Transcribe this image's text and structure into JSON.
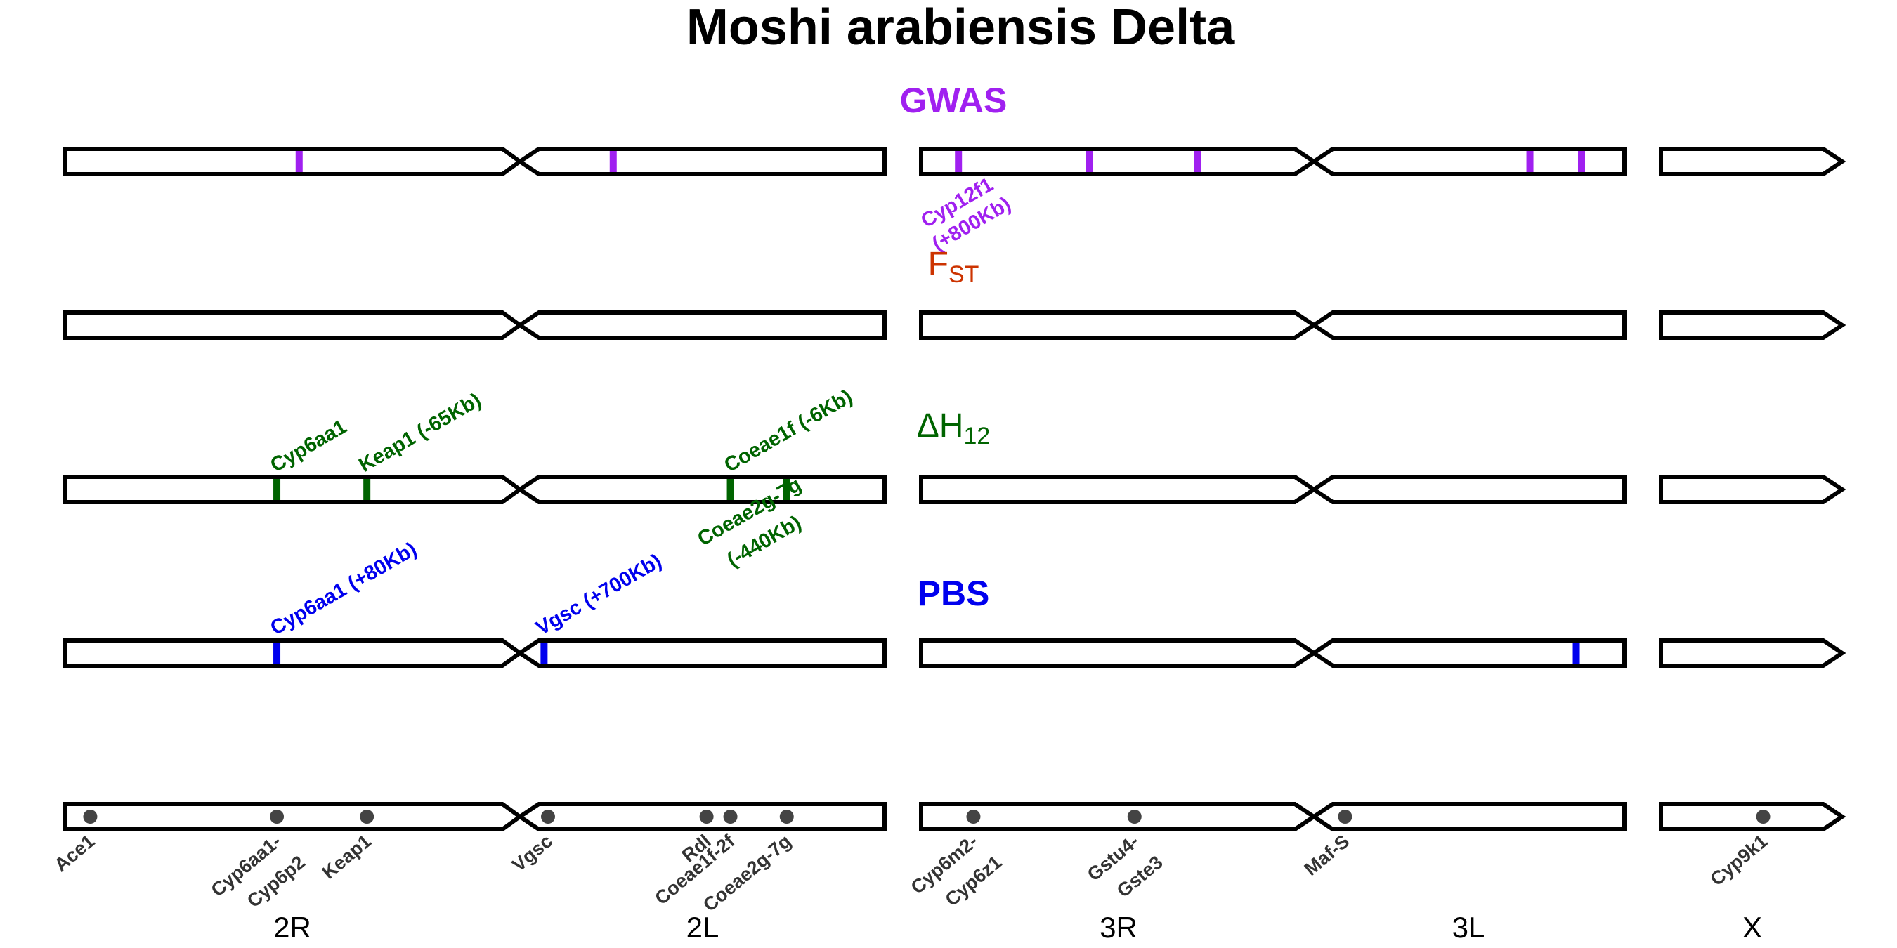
{
  "title": "Moshi arabiensis Delta",
  "colors": {
    "outline": "#000000",
    "gwas": "#a020f0",
    "fst": "#cc3300",
    "h12": "#006400",
    "pbs": "#0000ee",
    "locus": "#444444"
  },
  "tracks": [
    {
      "id": "gwas",
      "label": "GWAS",
      "label_sub": "",
      "label_prefix": "",
      "bold": true,
      "markers": [
        {
          "arm": "2R",
          "pos": 0.535
        },
        {
          "arm": "2L",
          "pos": 0.215
        },
        {
          "arm": "3R",
          "pos": 0.1
        },
        {
          "arm": "3R",
          "pos": 0.45
        },
        {
          "arm": "3R",
          "pos": 0.74
        },
        {
          "arm": "3L",
          "pos": 0.676
        },
        {
          "arm": "3L",
          "pos": 0.853
        }
      ],
      "annotations": [
        {
          "text": "Cyp12f1",
          "text2": "(+800Kb)"
        }
      ]
    },
    {
      "id": "fst",
      "label": "F",
      "label_sub": "ST",
      "label_prefix": "",
      "bold": false,
      "markers": [],
      "annotations": []
    },
    {
      "id": "h12",
      "label": "H",
      "label_sub": "12",
      "label_prefix": "Δ",
      "bold": false,
      "markers": [
        {
          "arm": "2R",
          "pos": 0.484
        },
        {
          "arm": "2R",
          "pos": 0.69
        },
        {
          "arm": "2L",
          "pos": 0.554
        },
        {
          "arm": "2L",
          "pos": 0.717
        }
      ],
      "annotations": [
        {
          "text": "Cyp6aa1",
          "text2": ""
        },
        {
          "text": "Keap1 (-65Kb)",
          "text2": ""
        },
        {
          "text": "Coeae1f (-6Kb)",
          "text2": ""
        },
        {
          "text": "Coeae2g-7g",
          "text2": "(-440Kb)"
        }
      ]
    },
    {
      "id": "pbs",
      "label": "PBS",
      "label_sub": "",
      "label_prefix": "",
      "bold": true,
      "markers": [
        {
          "arm": "2R",
          "pos": 0.484
        },
        {
          "arm": "2L",
          "pos": 0.015
        },
        {
          "arm": "3L",
          "pos": 0.835
        }
      ],
      "annotations": [
        {
          "text": "Cyp6aa1 (+80Kb)",
          "text2": ""
        },
        {
          "text": "Vgsc (+700Kb)",
          "text2": ""
        }
      ]
    }
  ],
  "loci": [
    {
      "arm": "2R",
      "pos": 0.057,
      "label": "Ace1",
      "label2": ""
    },
    {
      "arm": "2R",
      "pos": 0.484,
      "label": "Cyp6aa1-",
      "label2": "Cyp6p2"
    },
    {
      "arm": "2R",
      "pos": 0.69,
      "label": "Keap1",
      "label2": ""
    },
    {
      "arm": "2L",
      "pos": 0.0,
      "label": "Vgsc",
      "label2": ""
    },
    {
      "arm": "2L",
      "pos": 0.485,
      "label": "Rdl",
      "label2": ""
    },
    {
      "arm": "2L",
      "pos": 0.554,
      "label": "Coeae1f-2f",
      "label2": ""
    },
    {
      "arm": "2L",
      "pos": 0.717,
      "label": "Coeae2g-7g",
      "label2": ""
    },
    {
      "arm": "3R",
      "pos": 0.14,
      "label": "Cyp6m2-",
      "label2": "Cyp6z1"
    },
    {
      "arm": "3R",
      "pos": 0.571,
      "label": "Gstu4-",
      "label2": "Gste3"
    },
    {
      "arm": "3L",
      "pos": 0.042,
      "label": "Maf-S",
      "label2": ""
    },
    {
      "arm": "X",
      "pos": 0.63,
      "label": "Cyp9k1",
      "label2": ""
    }
  ],
  "arm_labels": [
    "2R",
    "2L",
    "3R",
    "3L",
    "X"
  ]
}
